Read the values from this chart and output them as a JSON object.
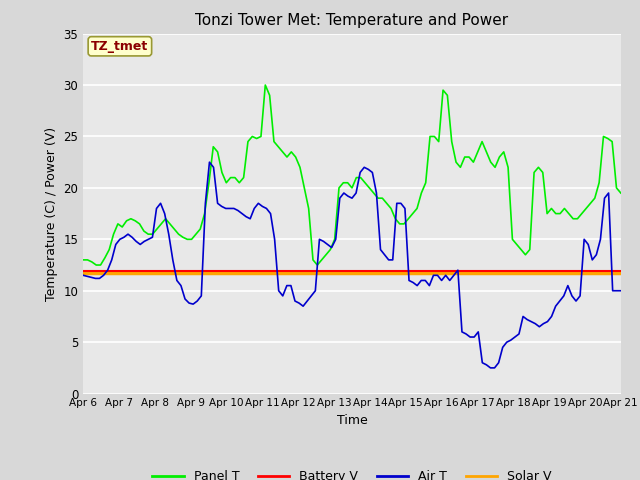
{
  "title": "Tonzi Tower Met: Temperature and Power",
  "xlabel": "Time",
  "ylabel": "Temperature (C) / Power (V)",
  "annotation_text": "TZ_tmet",
  "annotation_color": "#8B0000",
  "annotation_bg": "#FFFFCC",
  "annotation_edge": "#999933",
  "ylim": [
    0,
    35
  ],
  "yticks": [
    0,
    5,
    10,
    15,
    20,
    25,
    30,
    35
  ],
  "xtick_labels": [
    "Apr 6",
    "Apr 7",
    "Apr 8",
    "Apr 9",
    "Apr 10",
    "Apr 11",
    "Apr 12",
    "Apr 13",
    "Apr 14",
    "Apr 15",
    "Apr 16",
    "Apr 17",
    "Apr 18",
    "Apr 19",
    "Apr 20",
    "Apr 21"
  ],
  "fig_bg_color": "#D8D8D8",
  "plot_bg_color": "#E8E8E8",
  "grid_color": "#FFFFFF",
  "line_panel_color": "#00EE00",
  "line_battery_color": "#FF0000",
  "line_air_color": "#0000CC",
  "line_solar_color": "#FFA500",
  "panel_lw": 1.2,
  "battery_lw": 1.5,
  "air_lw": 1.2,
  "solar_lw": 2.5,
  "panel_t": [
    13.0,
    13.0,
    12.8,
    12.5,
    12.5,
    13.2,
    14.0,
    15.5,
    16.5,
    16.2,
    16.8,
    17.0,
    16.8,
    16.5,
    15.8,
    15.5,
    15.5,
    16.0,
    16.5,
    17.0,
    16.5,
    16.0,
    15.5,
    15.2,
    15.0,
    15.0,
    15.5,
    16.0,
    17.5,
    20.5,
    24.0,
    23.5,
    21.5,
    20.5,
    21.0,
    21.0,
    20.5,
    21.0,
    24.5,
    25.0,
    24.8,
    25.0,
    30.0,
    29.0,
    24.5,
    24.0,
    23.5,
    23.0,
    23.5,
    23.0,
    22.0,
    20.0,
    18.0,
    13.0,
    12.5,
    13.0,
    13.5,
    14.0,
    15.0,
    20.0,
    20.5,
    20.5,
    20.0,
    21.0,
    21.0,
    20.5,
    20.0,
    19.5,
    19.0,
    19.0,
    18.5,
    18.0,
    17.0,
    16.5,
    16.5,
    17.0,
    17.5,
    18.0,
    19.5,
    20.5,
    25.0,
    25.0,
    24.5,
    29.5,
    29.0,
    24.5,
    22.5,
    22.0,
    23.0,
    23.0,
    22.5,
    23.5,
    24.5,
    23.5,
    22.5,
    22.0,
    23.0,
    23.5,
    22.0,
    15.0,
    14.5,
    14.0,
    13.5,
    14.0,
    21.5,
    22.0,
    21.5,
    17.5,
    18.0,
    17.5,
    17.5,
    18.0,
    17.5,
    17.0,
    17.0,
    17.5,
    18.0,
    18.5,
    19.0,
    20.5,
    25.0,
    24.8,
    24.5,
    20.0,
    19.5
  ],
  "air_t": [
    11.5,
    11.4,
    11.3,
    11.2,
    11.2,
    11.5,
    12.0,
    13.0,
    14.5,
    15.0,
    15.2,
    15.5,
    15.2,
    14.8,
    14.5,
    14.8,
    15.0,
    15.2,
    18.0,
    18.5,
    17.5,
    15.5,
    13.0,
    11.0,
    10.5,
    9.2,
    8.8,
    8.7,
    9.0,
    9.5,
    18.5,
    22.5,
    22.0,
    18.5,
    18.2,
    18.0,
    18.0,
    18.0,
    17.8,
    17.5,
    17.2,
    17.0,
    18.0,
    18.5,
    18.2,
    18.0,
    17.5,
    15.0,
    10.0,
    9.5,
    10.5,
    10.5,
    9.0,
    8.8,
    8.5,
    9.0,
    9.5,
    10.0,
    15.0,
    14.8,
    14.5,
    14.2,
    15.0,
    19.0,
    19.5,
    19.2,
    19.0,
    19.5,
    21.5,
    22.0,
    21.8,
    21.5,
    19.5,
    14.0,
    13.5,
    13.0,
    13.0,
    18.5,
    18.5,
    18.0,
    11.0,
    10.8,
    10.5,
    11.0,
    11.0,
    10.5,
    11.5,
    11.5,
    11.0,
    11.5,
    11.0,
    11.5,
    12.0,
    6.0,
    5.8,
    5.5,
    5.5,
    6.0,
    3.0,
    2.8,
    2.5,
    2.5,
    3.0,
    4.5,
    5.0,
    5.2,
    5.5,
    5.8,
    7.5,
    7.2,
    7.0,
    6.8,
    6.5,
    6.8,
    7.0,
    7.5,
    8.5,
    9.0,
    9.5,
    10.5,
    9.5,
    9.0,
    9.5,
    15.0,
    14.5,
    13.0,
    13.5,
    15.0,
    19.0,
    19.5,
    10.0,
    10.0,
    10.0
  ],
  "battery_v": 11.9,
  "solar_v": 11.7,
  "n_xticks": 16
}
